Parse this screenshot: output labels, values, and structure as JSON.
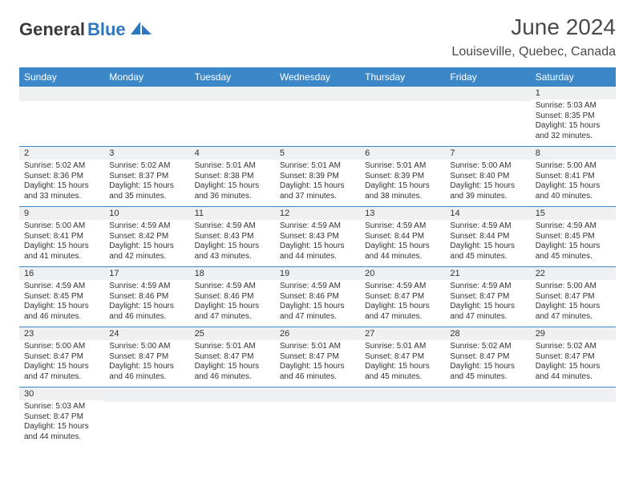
{
  "brand": {
    "part1": "General",
    "part2": "Blue"
  },
  "title": "June 2024",
  "location": "Louiseville, Quebec, Canada",
  "colors": {
    "header_bg": "#3b87c8",
    "header_text": "#ffffff",
    "row_border": "#3b87c8",
    "daynum_bg": "#eef0f2",
    "text": "#333333",
    "brand_accent": "#2f78bd"
  },
  "typography": {
    "title_fontsize": 28,
    "location_fontsize": 16,
    "dayheader_fontsize": 12,
    "daynum_fontsize": 11,
    "detail_fontsize": 10
  },
  "day_headers": [
    "Sunday",
    "Monday",
    "Tuesday",
    "Wednesday",
    "Thursday",
    "Friday",
    "Saturday"
  ],
  "labels": {
    "sunrise": "Sunrise:",
    "sunset": "Sunset:",
    "daylight": "Daylight:"
  },
  "weeks": [
    [
      {
        "blank": true
      },
      {
        "blank": true
      },
      {
        "blank": true
      },
      {
        "blank": true
      },
      {
        "blank": true
      },
      {
        "blank": true
      },
      {
        "n": "1",
        "sunrise": "5:03 AM",
        "sunset": "8:35 PM",
        "daylight": "15 hours and 32 minutes."
      }
    ],
    [
      {
        "n": "2",
        "sunrise": "5:02 AM",
        "sunset": "8:36 PM",
        "daylight": "15 hours and 33 minutes."
      },
      {
        "n": "3",
        "sunrise": "5:02 AM",
        "sunset": "8:37 PM",
        "daylight": "15 hours and 35 minutes."
      },
      {
        "n": "4",
        "sunrise": "5:01 AM",
        "sunset": "8:38 PM",
        "daylight": "15 hours and 36 minutes."
      },
      {
        "n": "5",
        "sunrise": "5:01 AM",
        "sunset": "8:39 PM",
        "daylight": "15 hours and 37 minutes."
      },
      {
        "n": "6",
        "sunrise": "5:01 AM",
        "sunset": "8:39 PM",
        "daylight": "15 hours and 38 minutes."
      },
      {
        "n": "7",
        "sunrise": "5:00 AM",
        "sunset": "8:40 PM",
        "daylight": "15 hours and 39 minutes."
      },
      {
        "n": "8",
        "sunrise": "5:00 AM",
        "sunset": "8:41 PM",
        "daylight": "15 hours and 40 minutes."
      }
    ],
    [
      {
        "n": "9",
        "sunrise": "5:00 AM",
        "sunset": "8:41 PM",
        "daylight": "15 hours and 41 minutes."
      },
      {
        "n": "10",
        "sunrise": "4:59 AM",
        "sunset": "8:42 PM",
        "daylight": "15 hours and 42 minutes."
      },
      {
        "n": "11",
        "sunrise": "4:59 AM",
        "sunset": "8:43 PM",
        "daylight": "15 hours and 43 minutes."
      },
      {
        "n": "12",
        "sunrise": "4:59 AM",
        "sunset": "8:43 PM",
        "daylight": "15 hours and 44 minutes."
      },
      {
        "n": "13",
        "sunrise": "4:59 AM",
        "sunset": "8:44 PM",
        "daylight": "15 hours and 44 minutes."
      },
      {
        "n": "14",
        "sunrise": "4:59 AM",
        "sunset": "8:44 PM",
        "daylight": "15 hours and 45 minutes."
      },
      {
        "n": "15",
        "sunrise": "4:59 AM",
        "sunset": "8:45 PM",
        "daylight": "15 hours and 45 minutes."
      }
    ],
    [
      {
        "n": "16",
        "sunrise": "4:59 AM",
        "sunset": "8:45 PM",
        "daylight": "15 hours and 46 minutes."
      },
      {
        "n": "17",
        "sunrise": "4:59 AM",
        "sunset": "8:46 PM",
        "daylight": "15 hours and 46 minutes."
      },
      {
        "n": "18",
        "sunrise": "4:59 AM",
        "sunset": "8:46 PM",
        "daylight": "15 hours and 47 minutes."
      },
      {
        "n": "19",
        "sunrise": "4:59 AM",
        "sunset": "8:46 PM",
        "daylight": "15 hours and 47 minutes."
      },
      {
        "n": "20",
        "sunrise": "4:59 AM",
        "sunset": "8:47 PM",
        "daylight": "15 hours and 47 minutes."
      },
      {
        "n": "21",
        "sunrise": "4:59 AM",
        "sunset": "8:47 PM",
        "daylight": "15 hours and 47 minutes."
      },
      {
        "n": "22",
        "sunrise": "5:00 AM",
        "sunset": "8:47 PM",
        "daylight": "15 hours and 47 minutes."
      }
    ],
    [
      {
        "n": "23",
        "sunrise": "5:00 AM",
        "sunset": "8:47 PM",
        "daylight": "15 hours and 47 minutes."
      },
      {
        "n": "24",
        "sunrise": "5:00 AM",
        "sunset": "8:47 PM",
        "daylight": "15 hours and 46 minutes."
      },
      {
        "n": "25",
        "sunrise": "5:01 AM",
        "sunset": "8:47 PM",
        "daylight": "15 hours and 46 minutes."
      },
      {
        "n": "26",
        "sunrise": "5:01 AM",
        "sunset": "8:47 PM",
        "daylight": "15 hours and 46 minutes."
      },
      {
        "n": "27",
        "sunrise": "5:01 AM",
        "sunset": "8:47 PM",
        "daylight": "15 hours and 45 minutes."
      },
      {
        "n": "28",
        "sunrise": "5:02 AM",
        "sunset": "8:47 PM",
        "daylight": "15 hours and 45 minutes."
      },
      {
        "n": "29",
        "sunrise": "5:02 AM",
        "sunset": "8:47 PM",
        "daylight": "15 hours and 44 minutes."
      }
    ],
    [
      {
        "n": "30",
        "sunrise": "5:03 AM",
        "sunset": "8:47 PM",
        "daylight": "15 hours and 44 minutes."
      },
      {
        "blank": true
      },
      {
        "blank": true
      },
      {
        "blank": true
      },
      {
        "blank": true
      },
      {
        "blank": true
      },
      {
        "blank": true
      }
    ]
  ]
}
